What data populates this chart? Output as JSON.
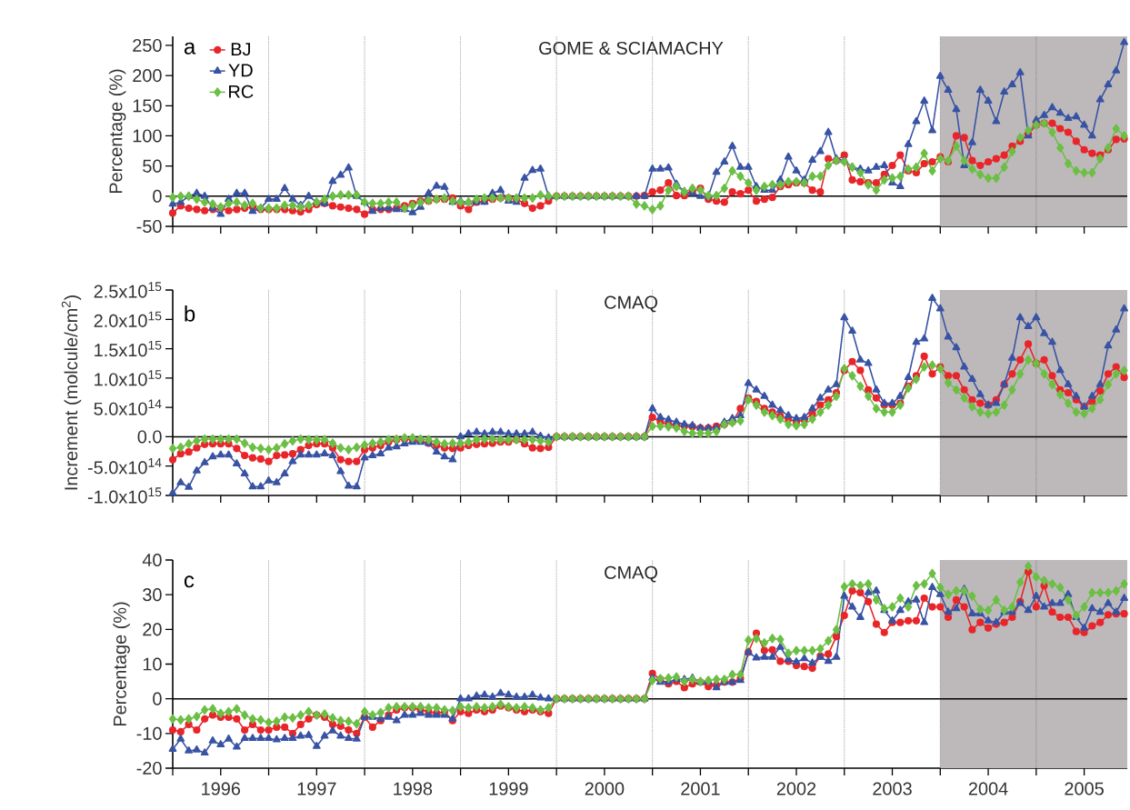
{
  "chart_data": [
    {
      "type": "line",
      "title": "GOME & SCIAMACHY",
      "ylabel": "Percentage (%)",
      "annotations": [
        "a"
      ],
      "legend": "top left",
      "tick_labels": "y",
      "xlim": [
        1996,
        2005.95
      ],
      "ylim": [
        -50,
        265
      ],
      "yticks": [
        -50,
        0,
        50,
        100,
        150,
        200,
        250
      ],
      "xticks": [
        1996,
        1996.5,
        1997,
        1997.5,
        1998,
        1998.5,
        1999,
        1999.5,
        2000,
        2000.5,
        2001,
        2001.5,
        2002,
        2002.5,
        2003,
        2003.5,
        2004,
        2004.5,
        2005,
        2005.5
      ],
      "ref_lines": [
        {
          "axis": "x",
          "value": 1997,
          "color": "#555555",
          "line_style": "dotted"
        },
        {
          "axis": "x",
          "value": 1998,
          "color": "#555555",
          "line_style": "dotted"
        },
        {
          "axis": "x",
          "value": 1999,
          "color": "#555555",
          "line_style": "dotted"
        },
        {
          "axis": "x",
          "value": 2000,
          "color": "#555555",
          "line_style": "dotted"
        },
        {
          "axis": "x",
          "value": 2001,
          "color": "#555555",
          "line_style": "dotted"
        },
        {
          "axis": "x",
          "value": 2002,
          "color": "#555555",
          "line_style": "dotted"
        },
        {
          "axis": "x",
          "value": 2003,
          "color": "#555555",
          "line_style": "dotted"
        },
        {
          "axis": "x",
          "value": 2004,
          "color": "#555555",
          "line_style": "dotted"
        },
        {
          "axis": "x",
          "value": 2005,
          "color": "#555555",
          "line_style": "dotted"
        },
        {
          "axis": "y",
          "value": 0,
          "color": "#000000",
          "line_style": "solid"
        }
      ],
      "bands": [
        {
          "axis": "x",
          "from": 2004,
          "to": 2005.95,
          "color": "#bdb9bb"
        }
      ],
      "x": [
        1996,
        1996.083,
        1996.167,
        1996.25,
        1996.333,
        1996.417,
        1996.5,
        1996.583,
        1996.667,
        1996.75,
        1996.833,
        1996.917,
        1997,
        1997.083,
        1997.167,
        1997.25,
        1997.333,
        1997.417,
        1997.5,
        1997.583,
        1997.667,
        1997.75,
        1997.833,
        1997.917,
        1998,
        1998.083,
        1998.167,
        1998.25,
        1998.333,
        1998.417,
        1998.5,
        1998.583,
        1998.667,
        1998.75,
        1998.833,
        1998.917,
        1999,
        1999.083,
        1999.167,
        1999.25,
        1999.333,
        1999.417,
        1999.5,
        1999.583,
        1999.667,
        1999.75,
        1999.833,
        1999.917,
        2000,
        2000.083,
        2000.167,
        2000.25,
        2000.333,
        2000.417,
        2000.5,
        2000.583,
        2000.667,
        2000.75,
        2000.833,
        2000.917,
        2001,
        2001.083,
        2001.167,
        2001.25,
        2001.333,
        2001.417,
        2001.5,
        2001.583,
        2001.667,
        2001.75,
        2001.833,
        2001.917,
        2002,
        2002.083,
        2002.167,
        2002.25,
        2002.333,
        2002.417,
        2002.5,
        2002.583,
        2002.667,
        2002.75,
        2002.833,
        2002.917,
        2003,
        2003.083,
        2003.167,
        2003.25,
        2003.333,
        2003.417,
        2003.5,
        2003.583,
        2003.667,
        2003.75,
        2003.833,
        2003.917,
        2004,
        2004.083,
        2004.167,
        2004.25,
        2004.333,
        2004.417,
        2004.5,
        2004.583,
        2004.667,
        2004.75,
        2004.833,
        2004.917,
        2005,
        2005.083,
        2005.167,
        2005.25,
        2005.333,
        2005.417,
        2005.5,
        2005.583,
        2005.667,
        2005.75,
        2005.833,
        2005.917
      ],
      "series": [
        {
          "name": "BJ",
          "color": "#e8262a",
          "marker": "circle",
          "values": [
            -28,
            -16,
            -20,
            -22,
            -24,
            -22,
            -20,
            -24,
            -22,
            -20,
            -18,
            -22,
            -22,
            -22,
            -22,
            -24,
            -26,
            -22,
            -14,
            -12,
            -16,
            -18,
            -20,
            -22,
            -30,
            -22,
            -22,
            -22,
            -20,
            -16,
            -12,
            -8,
            -8,
            -5,
            -5,
            -3,
            -16,
            -22,
            -10,
            -8,
            -5,
            -3,
            -3,
            -5,
            -12,
            -20,
            -16,
            -8,
            0,
            0,
            0,
            0,
            0,
            0,
            0,
            0,
            0,
            0,
            0,
            1,
            7,
            10,
            22,
            1,
            1,
            7,
            13,
            -5,
            -8,
            -10,
            7,
            4,
            10,
            -8,
            -5,
            -2,
            16,
            19,
            22,
            22,
            10,
            7,
            62,
            59,
            68,
            27,
            24,
            22,
            22,
            36,
            51,
            68,
            42,
            39,
            54,
            57,
            65,
            57,
            100,
            97,
            59,
            51,
            57,
            62,
            68,
            83,
            91,
            103,
            118,
            121,
            121,
            112,
            106,
            91,
            77,
            71,
            68,
            77,
            94,
            95
          ]
        },
        {
          "name": "YD",
          "color": "#3953a4",
          "marker": "triangle",
          "values": [
            -13,
            -10,
            0,
            5,
            0,
            -20,
            -30,
            -5,
            5,
            5,
            -25,
            -20,
            -5,
            -5,
            13,
            -5,
            -15,
            0,
            -10,
            -12,
            25,
            35,
            47,
            0,
            -10,
            -25,
            -20,
            -20,
            -22,
            -22,
            -27,
            -18,
            5,
            17,
            15,
            -10,
            -8,
            -10,
            -10,
            -10,
            5,
            10,
            -8,
            -10,
            30,
            43,
            45,
            0,
            0,
            0,
            0,
            0,
            0,
            0,
            0,
            0,
            0,
            0,
            0,
            0,
            45,
            45,
            47,
            20,
            8,
            5,
            0,
            0,
            40,
            57,
            83,
            48,
            48,
            16,
            10,
            10,
            27,
            65,
            42,
            27,
            60,
            74,
            106,
            62,
            59,
            48,
            45,
            42,
            48,
            51,
            22,
            16,
            86,
            124,
            158,
            109,
            199,
            176,
            144,
            51,
            89,
            176,
            158,
            124,
            173,
            185,
            205,
            100,
            126,
            134,
            147,
            138,
            129,
            132,
            118,
            100,
            160,
            185,
            208,
            255
          ]
        },
        {
          "name": "RC",
          "color": "#6cbf45",
          "marker": "diamond",
          "values": [
            -2,
            0,
            0,
            -5,
            -10,
            -13,
            -18,
            -12,
            -10,
            -15,
            -12,
            -20,
            -20,
            -20,
            -15,
            -15,
            -18,
            -15,
            -10,
            -5,
            0,
            2,
            2,
            2,
            -10,
            -12,
            -12,
            -10,
            -10,
            -20,
            -15,
            -10,
            -7,
            -5,
            -3,
            -8,
            -10,
            -10,
            -5,
            -3,
            -3,
            -3,
            -3,
            -3,
            -3,
            -3,
            2,
            0,
            0,
            0,
            0,
            0,
            0,
            0,
            0,
            0,
            0,
            0,
            -13,
            -16,
            -22,
            -16,
            10,
            16,
            7,
            13,
            10,
            1,
            1,
            13,
            42,
            33,
            22,
            10,
            16,
            19,
            19,
            24,
            24,
            22,
            33,
            33,
            51,
            59,
            57,
            48,
            39,
            19,
            10,
            27,
            30,
            33,
            45,
            48,
            71,
            42,
            62,
            59,
            83,
            59,
            45,
            36,
            30,
            30,
            48,
            74,
            97,
            109,
            118,
            121,
            106,
            80,
            54,
            42,
            39,
            39,
            62,
            80,
            112,
            100
          ]
        }
      ]
    },
    {
      "type": "line",
      "title": "CMAQ",
      "ylabel": "Increment (molcule/cm$^{2}$)",
      "annotations": [
        "b"
      ],
      "tick_labels": "y",
      "xlim": [
        1996,
        2005.95
      ],
      "ylim": [
        -1000000000000000.0,
        2500000000000000.0
      ],
      "yticks": [
        {
          "value": -1000000000000000.0,
          "label": "-1.0x10$^{15}$"
        },
        {
          "value": -500000000000000.0,
          "label": "-5.0x10$^{14}$"
        },
        {
          "value": 0,
          "label": "0.0"
        },
        {
          "value": 500000000000000.0,
          "label": "5.0x10$^{14}$"
        },
        {
          "value": 1000000000000000.0,
          "label": "1.0x10$^{15}$"
        },
        {
          "value": 1500000000000000.0,
          "label": "1.5x10$^{15}$"
        },
        {
          "value": 2000000000000000.0,
          "label": "2.0x10$^{15}$"
        },
        {
          "value": 2500000000000000.0,
          "label": "2.5x10$^{15}$"
        }
      ],
      "xticks": [
        1996,
        1996.5,
        1997,
        1997.5,
        1998,
        1998.5,
        1999,
        1999.5,
        2000,
        2000.5,
        2001,
        2001.5,
        2002,
        2002.5,
        2003,
        2003.5,
        2004,
        2004.5,
        2005,
        2005.5
      ],
      "ref_lines": [
        {
          "axis": "x",
          "value": 1997,
          "color": "#555555",
          "line_style": "dotted"
        },
        {
          "axis": "x",
          "value": 1998,
          "color": "#555555",
          "line_style": "dotted"
        },
        {
          "axis": "x",
          "value": 1999,
          "color": "#555555",
          "line_style": "dotted"
        },
        {
          "axis": "x",
          "value": 2000,
          "color": "#555555",
          "line_style": "dotted"
        },
        {
          "axis": "x",
          "value": 2001,
          "color": "#555555",
          "line_style": "dotted"
        },
        {
          "axis": "x",
          "value": 2002,
          "color": "#555555",
          "line_style": "dotted"
        },
        {
          "axis": "x",
          "value": 2003,
          "color": "#555555",
          "line_style": "dotted"
        },
        {
          "axis": "x",
          "value": 2004,
          "color": "#555555",
          "line_style": "dotted"
        },
        {
          "axis": "x",
          "value": 2005,
          "color": "#555555",
          "line_style": "dotted"
        },
        {
          "axis": "y",
          "value": 0,
          "color": "#000000",
          "line_style": "solid"
        }
      ],
      "bands": [
        {
          "axis": "x",
          "from": 2004,
          "to": 2005.95,
          "color": "#bdb9bb"
        }
      ],
      "x": [
        1996,
        1996.083,
        1996.167,
        1996.25,
        1996.333,
        1996.417,
        1996.5,
        1996.583,
        1996.667,
        1996.75,
        1996.833,
        1996.917,
        1997,
        1997.083,
        1997.167,
        1997.25,
        1997.333,
        1997.417,
        1997.5,
        1997.583,
        1997.667,
        1997.75,
        1997.833,
        1997.917,
        1998,
        1998.083,
        1998.167,
        1998.25,
        1998.333,
        1998.417,
        1998.5,
        1998.583,
        1998.667,
        1998.75,
        1998.833,
        1998.917,
        1999,
        1999.083,
        1999.167,
        1999.25,
        1999.333,
        1999.417,
        1999.5,
        1999.583,
        1999.667,
        1999.75,
        1999.833,
        1999.917,
        2000,
        2000.083,
        2000.167,
        2000.25,
        2000.333,
        2000.417,
        2000.5,
        2000.583,
        2000.667,
        2000.75,
        2000.833,
        2000.917,
        2001,
        2001.083,
        2001.167,
        2001.25,
        2001.333,
        2001.417,
        2001.5,
        2001.583,
        2001.667,
        2001.75,
        2001.833,
        2001.917,
        2002,
        2002.083,
        2002.167,
        2002.25,
        2002.333,
        2002.417,
        2002.5,
        2002.583,
        2002.667,
        2002.75,
        2002.833,
        2002.917,
        2003,
        2003.083,
        2003.167,
        2003.25,
        2003.333,
        2003.417,
        2003.5,
        2003.583,
        2003.667,
        2003.75,
        2003.833,
        2003.917,
        2004,
        2004.083,
        2004.167,
        2004.25,
        2004.333,
        2004.417,
        2004.5,
        2004.583,
        2004.667,
        2004.75,
        2004.833,
        2004.917,
        2005,
        2005.083,
        2005.167,
        2005.25,
        2005.333,
        2005.417,
        2005.5,
        2005.583,
        2005.667,
        2005.75,
        2005.833,
        2005.917
      ],
      "series": [
        {
          "color": "#e8262a",
          "marker": "circle",
          "values": [
            -390000000000000.0,
            -290000000000000.0,
            -260000000000000.0,
            -190000000000000.0,
            -130000000000000.0,
            -120000000000000.0,
            -120000000000000.0,
            -120000000000000.0,
            -200000000000000.0,
            -320000000000000.0,
            -360000000000000.0,
            -380000000000000.0,
            -420000000000000.0,
            -320000000000000.0,
            -310000000000000.0,
            -290000000000000.0,
            -220000000000000.0,
            -150000000000000.0,
            -120000000000000.0,
            -120000000000000.0,
            -190000000000000.0,
            -390000000000000.0,
            -420000000000000.0,
            -420000000000000.0,
            -220000000000000.0,
            -190000000000000.0,
            -150000000000000.0,
            -90000000000000.0,
            -50000000000000.0,
            -40000000000000.0,
            -50000000000000.0,
            -70000000000000.0,
            -110000000000000.0,
            -150000000000000.0,
            -190000000000000.0,
            -200000000000000.0,
            -190000000000000.0,
            -150000000000000.0,
            -130000000000000.0,
            -120000000000000.0,
            -110000000000000.0,
            -90000000000000.0,
            -90000000000000.0,
            -50000000000000.0,
            -120000000000000.0,
            -190000000000000.0,
            -200000000000000.0,
            -180000000000000.0,
            0,
            0,
            0,
            0,
            0,
            0,
            0,
            0,
            0,
            0,
            0,
            0,
            330000000000000.0,
            250000000000000.0,
            210000000000000.0,
            190000000000000.0,
            180000000000000.0,
            170000000000000.0,
            150000000000000.0,
            150000000000000.0,
            180000000000000.0,
            210000000000000.0,
            250000000000000.0,
            480000000000000.0,
            660000000000000.0,
            600000000000000.0,
            480000000000000.0,
            420000000000000.0,
            350000000000000.0,
            300000000000000.0,
            250000000000000.0,
            290000000000000.0,
            390000000000000.0,
            540000000000000.0,
            630000000000000.0,
            750000000000000.0,
            1130000000000000.0,
            1280000000000000.0,
            1130000000000000.0,
            800000000000000.0,
            660000000000000.0,
            540000000000000.0,
            540000000000000.0,
            570000000000000.0,
            860000000000000.0,
            1040000000000000.0,
            1370000000000000.0,
            1070000000000000.0,
            1190000000000000.0,
            1040000000000000.0,
            1040000000000000.0,
            800000000000000.0,
            630000000000000.0,
            570000000000000.0,
            540000000000000.0,
            630000000000000.0,
            890000000000000.0,
            1070000000000000.0,
            1310000000000000.0,
            1580000000000000.0,
            1250000000000000.0,
            1310000000000000.0,
            1040000000000000.0,
            800000000000000.0,
            750000000000000.0,
            630000000000000.0,
            510000000000000.0,
            600000000000000.0,
            780000000000000.0,
            1070000000000000.0,
            1190000000000000.0,
            1010000000000000.0
          ]
        },
        {
          "color": "#3953a4",
          "marker": "triangle",
          "values": [
            -960000000000000.0,
            -780000000000000.0,
            -860000000000000.0,
            -580000000000000.0,
            -440000000000000.0,
            -340000000000000.0,
            -310000000000000.0,
            -310000000000000.0,
            -460000000000000.0,
            -630000000000000.0,
            -850000000000000.0,
            -850000000000000.0,
            -750000000000000.0,
            -780000000000000.0,
            -630000000000000.0,
            -420000000000000.0,
            -310000000000000.0,
            -310000000000000.0,
            -310000000000000.0,
            -290000000000000.0,
            -320000000000000.0,
            -590000000000000.0,
            -840000000000000.0,
            -850000000000000.0,
            -360000000000000.0,
            -320000000000000.0,
            -290000000000000.0,
            -190000000000000.0,
            -170000000000000.0,
            -120000000000000.0,
            -90000000000000.0,
            -90000000000000.0,
            -110000000000000.0,
            -260000000000000.0,
            -340000000000000.0,
            -390000000000000.0,
            0,
            50000000000000.0,
            80000000000000.0,
            50000000000000.0,
            80000000000000.0,
            80000000000000.0,
            50000000000000.0,
            50000000000000.0,
            50000000000000.0,
            80000000000000.0,
            10000000000000.0,
            -20000000000000.0,
            0,
            0,
            0,
            0,
            0,
            0,
            0,
            0,
            0,
            0,
            0,
            0,
            480000000000000.0,
            330000000000000.0,
            290000000000000.0,
            250000000000000.0,
            210000000000000.0,
            190000000000000.0,
            150000000000000.0,
            150000000000000.0,
            150000000000000.0,
            250000000000000.0,
            310000000000000.0,
            360000000000000.0,
            910000000000000.0,
            800000000000000.0,
            690000000000000.0,
            540000000000000.0,
            450000000000000.0,
            360000000000000.0,
            310000000000000.0,
            330000000000000.0,
            480000000000000.0,
            660000000000000.0,
            800000000000000.0,
            890000000000000.0,
            2030000000000000.0,
            1800000000000000.0,
            1310000000000000.0,
            1250000000000000.0,
            800000000000000.0,
            570000000000000.0,
            570000000000000.0,
            690000000000000.0,
            1010000000000000.0,
            1610000000000000.0,
            1670000000000000.0,
            2360000000000000.0,
            2180000000000000.0,
            1700000000000000.0,
            1520000000000000.0,
            1190000000000000.0,
            980000000000000.0,
            720000000000000.0,
            540000000000000.0,
            570000000000000.0,
            890000000000000.0,
            1340000000000000.0,
            2030000000000000.0,
            1880000000000000.0,
            2030000000000000.0,
            1760000000000000.0,
            1610000000000000.0,
            1130000000000000.0,
            890000000000000.0,
            690000000000000.0,
            510000000000000.0,
            690000000000000.0,
            890000000000000.0,
            1550000000000000.0,
            1820000000000000.0,
            2180000000000000.0
          ]
        },
        {
          "color": "#6cbf45",
          "marker": "diamond",
          "values": [
            -200000000000000.0,
            -180000000000000.0,
            -120000000000000.0,
            -70000000000000.0,
            -40000000000000.0,
            -40000000000000.0,
            -40000000000000.0,
            -40000000000000.0,
            -40000000000000.0,
            -110000000000000.0,
            -180000000000000.0,
            -200000000000000.0,
            -220000000000000.0,
            -190000000000000.0,
            -120000000000000.0,
            -70000000000000.0,
            -40000000000000.0,
            -50000000000000.0,
            -50000000000000.0,
            -50000000000000.0,
            -110000000000000.0,
            -190000000000000.0,
            -220000000000000.0,
            -180000000000000.0,
            -140000000000000.0,
            -110000000000000.0,
            -90000000000000.0,
            -50000000000000.0,
            -40000000000000.0,
            -20000000000000.0,
            -20000000000000.0,
            -40000000000000.0,
            -50000000000000.0,
            -90000000000000.0,
            -120000000000000.0,
            -110000000000000.0,
            -110000000000000.0,
            -90000000000000.0,
            -50000000000000.0,
            -40000000000000.0,
            -40000000000000.0,
            -50000000000000.0,
            -50000000000000.0,
            -50000000000000.0,
            -50000000000000.0,
            -50000000000000.0,
            -70000000000000.0,
            -90000000000000.0,
            0,
            0,
            0,
            0,
            0,
            0,
            0,
            0,
            0,
            0,
            0,
            0,
            180000000000000.0,
            180000000000000.0,
            170000000000000.0,
            150000000000000.0,
            90000000000000.0,
            60000000000000.0,
            60000000000000.0,
            60000000000000.0,
            90000000000000.0,
            210000000000000.0,
            240000000000000.0,
            270000000000000.0,
            630000000000000.0,
            540000000000000.0,
            420000000000000.0,
            360000000000000.0,
            300000000000000.0,
            210000000000000.0,
            190000000000000.0,
            210000000000000.0,
            300000000000000.0,
            420000000000000.0,
            540000000000000.0,
            690000000000000.0,
            1160000000000000.0,
            1040000000000000.0,
            860000000000000.0,
            690000000000000.0,
            480000000000000.0,
            420000000000000.0,
            420000000000000.0,
            540000000000000.0,
            830000000000000.0,
            980000000000000.0,
            1190000000000000.0,
            1220000000000000.0,
            1160000000000000.0,
            920000000000000.0,
            800000000000000.0,
            660000000000000.0,
            510000000000000.0,
            420000000000000.0,
            390000000000000.0,
            420000000000000.0,
            540000000000000.0,
            800000000000000.0,
            1070000000000000.0,
            1310000000000000.0,
            1250000000000000.0,
            1070000000000000.0,
            890000000000000.0,
            720000000000000.0,
            570000000000000.0,
            420000000000000.0,
            390000000000000.0,
            480000000000000.0,
            630000000000000.0,
            890000000000000.0,
            1070000000000000.0,
            1130000000000000.0
          ]
        }
      ]
    },
    {
      "type": "line",
      "title": "CMAQ",
      "ylabel": "Percentage (%)",
      "annotations": [
        "c"
      ],
      "xlim": [
        1996,
        2005.95
      ],
      "ylim": [
        -20,
        40
      ],
      "yticks": [
        -20,
        -10,
        0,
        10,
        20,
        30,
        40
      ],
      "xticks": [
        {
          "value": 1996,
          "label": null
        },
        {
          "value": 1996.5,
          "label": "1996"
        },
        {
          "value": 1997,
          "label": null
        },
        {
          "value": 1997.5,
          "label": "1997"
        },
        {
          "value": 1998,
          "label": null
        },
        {
          "value": 1998.5,
          "label": "1998"
        },
        {
          "value": 1999,
          "label": null
        },
        {
          "value": 1999.5,
          "label": "1999"
        },
        {
          "value": 2000,
          "label": null
        },
        {
          "value": 2000.5,
          "label": "2000"
        },
        {
          "value": 2001,
          "label": null
        },
        {
          "value": 2001.5,
          "label": "2001"
        },
        {
          "value": 2002,
          "label": null
        },
        {
          "value": 2002.5,
          "label": "2002"
        },
        {
          "value": 2003,
          "label": null
        },
        {
          "value": 2003.5,
          "label": "2003"
        },
        {
          "value": 2004,
          "label": null
        },
        {
          "value": 2004.5,
          "label": "2004"
        },
        {
          "value": 2005,
          "label": null
        },
        {
          "value": 2005.5,
          "label": "2005"
        }
      ],
      "ref_lines": [
        {
          "axis": "x",
          "value": 1997,
          "color": "#555555",
          "line_style": "dotted"
        },
        {
          "axis": "x",
          "value": 1998,
          "color": "#555555",
          "line_style": "dotted"
        },
        {
          "axis": "x",
          "value": 1999,
          "color": "#555555",
          "line_style": "dotted"
        },
        {
          "axis": "x",
          "value": 2000,
          "color": "#555555",
          "line_style": "dotted"
        },
        {
          "axis": "x",
          "value": 2001,
          "color": "#555555",
          "line_style": "dotted"
        },
        {
          "axis": "x",
          "value": 2002,
          "color": "#555555",
          "line_style": "dotted"
        },
        {
          "axis": "x",
          "value": 2003,
          "color": "#555555",
          "line_style": "dotted"
        },
        {
          "axis": "x",
          "value": 2004,
          "color": "#555555",
          "line_style": "dotted"
        },
        {
          "axis": "x",
          "value": 2005,
          "color": "#555555",
          "line_style": "dotted"
        },
        {
          "axis": "y",
          "value": 0,
          "color": "#000000",
          "line_style": "solid"
        }
      ],
      "bands": [
        {
          "axis": "x",
          "from": 2004,
          "to": 2005.95,
          "color": "#bdb9bb"
        }
      ],
      "x": [
        1996,
        1996.083,
        1996.167,
        1996.25,
        1996.333,
        1996.417,
        1996.5,
        1996.583,
        1996.667,
        1996.75,
        1996.833,
        1996.917,
        1997,
        1997.083,
        1997.167,
        1997.25,
        1997.333,
        1997.417,
        1997.5,
        1997.583,
        1997.667,
        1997.75,
        1997.833,
        1997.917,
        1998,
        1998.083,
        1998.167,
        1998.25,
        1998.333,
        1998.417,
        1998.5,
        1998.583,
        1998.667,
        1998.75,
        1998.833,
        1998.917,
        1999,
        1999.083,
        1999.167,
        1999.25,
        1999.333,
        1999.417,
        1999.5,
        1999.583,
        1999.667,
        1999.75,
        1999.833,
        1999.917,
        2000,
        2000.083,
        2000.167,
        2000.25,
        2000.333,
        2000.417,
        2000.5,
        2000.583,
        2000.667,
        2000.75,
        2000.833,
        2000.917,
        2001,
        2001.083,
        2001.167,
        2001.25,
        2001.333,
        2001.417,
        2001.5,
        2001.583,
        2001.667,
        2001.75,
        2001.833,
        2001.917,
        2002,
        2002.083,
        2002.167,
        2002.25,
        2002.333,
        2002.417,
        2002.5,
        2002.583,
        2002.667,
        2002.75,
        2002.833,
        2002.917,
        2003,
        2003.083,
        2003.167,
        2003.25,
        2003.333,
        2003.417,
        2003.5,
        2003.583,
        2003.667,
        2003.75,
        2003.833,
        2003.917,
        2004,
        2004.083,
        2004.167,
        2004.25,
        2004.333,
        2004.417,
        2004.5,
        2004.583,
        2004.667,
        2004.75,
        2004.833,
        2004.917,
        2005,
        2005.083,
        2005.167,
        2005.25,
        2005.333,
        2005.417,
        2005.5,
        2005.583,
        2005.667,
        2005.75,
        2005.833,
        2005.917
      ],
      "series": [
        {
          "color": "#e8262a",
          "marker": "circle",
          "values": [
            -9,
            -9.5,
            -7.4,
            -9,
            -5.8,
            -4.7,
            -5.3,
            -5.3,
            -5.8,
            -9,
            -7.4,
            -9,
            -9,
            -8.2,
            -8.2,
            -10,
            -7.4,
            -5.8,
            -4.7,
            -5.3,
            -7.4,
            -7.9,
            -9,
            -10,
            -5.3,
            -8.2,
            -6.3,
            -4.7,
            -3.2,
            -2.6,
            -2.6,
            -3.2,
            -3.7,
            -4.2,
            -3.7,
            -6.3,
            -3.7,
            -4.2,
            -3.2,
            -3.7,
            -3.2,
            -2.1,
            -2.6,
            -3.2,
            -3.7,
            -3.2,
            -3.7,
            -4.2,
            0,
            0,
            0,
            0,
            0,
            0,
            0,
            0,
            0,
            0,
            0,
            0,
            7.3,
            5.6,
            4.3,
            5,
            3.2,
            4.3,
            4.8,
            3.5,
            3.9,
            4.8,
            4.8,
            5.8,
            13.4,
            18.9,
            13.9,
            14.1,
            10.8,
            10.8,
            9.6,
            9.3,
            8.8,
            12.3,
            12.9,
            17.9,
            24,
            31.1,
            30.6,
            28,
            21.5,
            19.1,
            22,
            22,
            22.5,
            22.5,
            29,
            26.5,
            26.5,
            23.5,
            28.5,
            26.5,
            19.9,
            22,
            20.4,
            21.5,
            22,
            23.5,
            28,
            36.6,
            26.5,
            32.6,
            25,
            23.5,
            23.5,
            19.4,
            19.1,
            21,
            22,
            24.2,
            24.5,
            24.5
          ]
        },
        {
          "color": "#3953a4",
          "marker": "triangle",
          "values": [
            -14.5,
            -11.6,
            -15,
            -14.7,
            -15.6,
            -12.1,
            -13.2,
            -11.6,
            -13.9,
            -11.4,
            -11.4,
            -11.4,
            -11.4,
            -11.8,
            -11.4,
            -11.4,
            -10.7,
            -10.5,
            -13.7,
            -10.7,
            -9.2,
            -10.7,
            -11.4,
            -11.6,
            -5.3,
            -5.3,
            -5.8,
            -5.3,
            -6.3,
            -4.7,
            -4.7,
            -4.2,
            -4.7,
            -4.7,
            -4.7,
            -5.8,
            0,
            0,
            0.8,
            1.1,
            0.5,
            1.6,
            1.1,
            0.5,
            0.5,
            1.1,
            0.3,
            0,
            0,
            0,
            0,
            0,
            0,
            0,
            0,
            0,
            0,
            0,
            0,
            0,
            6,
            4.8,
            4.8,
            5.6,
            5.6,
            6,
            4.8,
            5,
            3.2,
            4.8,
            4.8,
            5.3,
            13.4,
            11.8,
            12,
            12,
            14.9,
            11.3,
            10.6,
            11.6,
            10.3,
            12,
            10.8,
            12,
            29.6,
            26.5,
            23.5,
            30.6,
            31.1,
            25.5,
            22.5,
            25.5,
            28,
            28.5,
            22,
            32.1,
            30.1,
            25,
            26,
            31.6,
            24.5,
            24.5,
            22.5,
            22,
            25,
            25,
            27.5,
            25.5,
            29.6,
            26.5,
            27.5,
            27.5,
            30.1,
            23.5,
            20.4,
            26,
            25,
            27.5,
            25,
            29
          ]
        },
        {
          "color": "#6cbf45",
          "marker": "diamond",
          "values": [
            -5.8,
            -6.1,
            -5.8,
            -5.1,
            -3.2,
            -2.9,
            -4.2,
            -3.7,
            -2.9,
            -4.7,
            -5.8,
            -6.1,
            -6.8,
            -6.5,
            -5.3,
            -5.5,
            -4.7,
            -3.7,
            -4.7,
            -4.4,
            -5.5,
            -6.3,
            -6.5,
            -7.2,
            -3.7,
            -4.7,
            -4,
            -2.6,
            -2.3,
            -2.3,
            -2.3,
            -2.3,
            -2.6,
            -2.6,
            -3.2,
            -3.4,
            -2.3,
            -2.6,
            -2.3,
            -2.6,
            -2.3,
            -1.6,
            -2.3,
            -2.6,
            -2.3,
            -2.6,
            -3.2,
            -2.6,
            0,
            0,
            0,
            0,
            0,
            0,
            0,
            0,
            0,
            0,
            0,
            0,
            5.3,
            5.8,
            6,
            6.3,
            5,
            5.6,
            5,
            5.3,
            5.6,
            5.6,
            7,
            7,
            16.9,
            17.4,
            16.1,
            17.4,
            17.1,
            13.1,
            13.9,
            13.9,
            13.9,
            14.4,
            16.7,
            19.9,
            32.3,
            33.1,
            32.6,
            33.1,
            28.5,
            26,
            26.5,
            29,
            26.5,
            32.6,
            33.1,
            36.1,
            32.1,
            30.1,
            31.1,
            31.1,
            29.6,
            25.8,
            25.5,
            28.5,
            25.5,
            26.5,
            33.6,
            38.2,
            35.1,
            34.1,
            33.1,
            32.1,
            28.5,
            24,
            26.5,
            30.6,
            30.6,
            30.6,
            31.1,
            33.1
          ]
        }
      ]
    }
  ]
}
